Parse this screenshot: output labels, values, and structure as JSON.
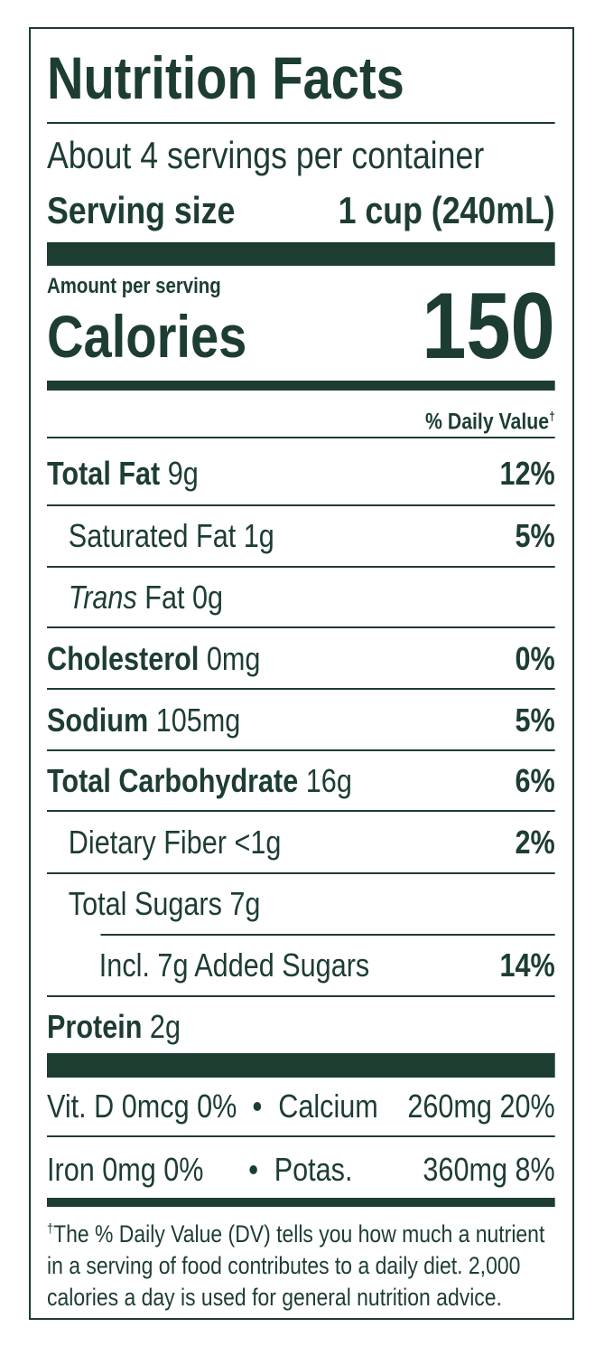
{
  "title": "Nutrition Facts",
  "servings": "About 4 servings per container",
  "serving_size": {
    "label": "Serving size",
    "value": "1 cup (240mL)"
  },
  "amount_per_serving": "Amount per serving",
  "calories": {
    "label": "Calories",
    "value": "150"
  },
  "daily_value_header": {
    "text": "% Daily Value",
    "mark": "†"
  },
  "rows": [
    {
      "name": "Total Fat",
      "amount": "9g",
      "dv": "12%"
    },
    {
      "name": "Saturated Fat",
      "amount": "1g",
      "dv": "5%"
    },
    {
      "name_italic": "Trans",
      "name": "Fat",
      "amount": "0g"
    },
    {
      "name": "Cholesterol",
      "amount": "0mg",
      "dv": "0%"
    },
    {
      "name": "Sodium",
      "amount": "105mg",
      "dv": "5%"
    },
    {
      "name": "Total Carbohydrate",
      "amount": "16g",
      "dv": "6%"
    },
    {
      "name": "Dietary Fiber",
      "amount": "<1g",
      "dv": "2%"
    },
    {
      "name": "Total Sugars",
      "amount": "7g"
    },
    {
      "name": "Incl. 7g Added Sugars",
      "dv": "14%"
    },
    {
      "name": "Protein",
      "amount": "2g"
    }
  ],
  "vitamins": [
    {
      "name": "Vit. D",
      "amount": "0mcg 0%"
    },
    {
      "name": "Calcium",
      "amount": "260mg 20%"
    },
    {
      "name": "Iron",
      "amount": "0mg 0%"
    },
    {
      "name": "Potas.",
      "amount": "360mg 8%"
    }
  ],
  "footnote": {
    "mark": "†",
    "text": "The % Daily Value (DV) tells you how much a nutrient in a serving of food contributes to a daily diet. 2,000 calories a day is used for general nutrition advice."
  }
}
